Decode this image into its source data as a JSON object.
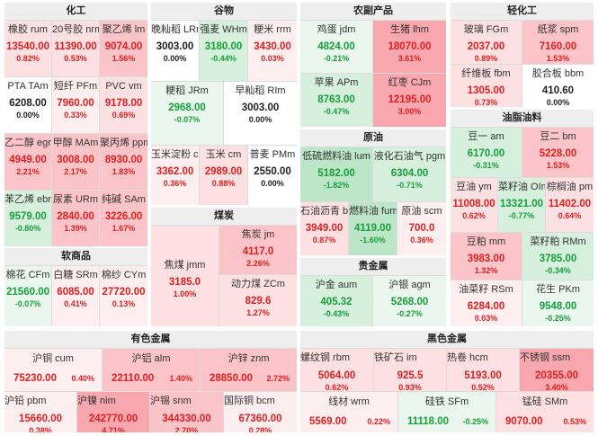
{
  "colors": {
    "up": "#e02020",
    "down": "#15a03a",
    "flat": "#222222",
    "panel_bg": "#dcdcdc",
    "title_bg": "#eeeeee"
  },
  "sections": {
    "chemicals": {
      "title": "化工",
      "items": [
        {
          "name": "橡胶 rum",
          "price": "13540.00",
          "change": "0.82%"
        },
        {
          "name": "20号胶 nrm",
          "price": "11390.00",
          "change": "0.53%"
        },
        {
          "name": "聚乙烯 lm",
          "price": "9074.00",
          "change": "1.56%"
        },
        {
          "name": "PTA TAm",
          "price": "6208.00",
          "change": "0.00%"
        },
        {
          "name": "短纤 PFm",
          "price": "7960.00",
          "change": "0.33%"
        },
        {
          "name": "PVC vm",
          "price": "9178.00",
          "change": "0.69%"
        },
        {
          "name": "乙二醇 egm",
          "price": "4949.00",
          "change": "2.21%"
        },
        {
          "name": "甲醇 MAm",
          "price": "3008.00",
          "change": "2.17%"
        },
        {
          "name": "聚丙烯 ppm",
          "price": "8930.00",
          "change": "1.83%"
        },
        {
          "name": "苯乙烯 ebm",
          "price": "9579.00",
          "change": "-0.80%"
        },
        {
          "name": "尿素 URm",
          "price": "2840.00",
          "change": "1.39%"
        },
        {
          "name": "纯碱 SAm",
          "price": "3226.00",
          "change": "1.67%"
        }
      ]
    },
    "grains": {
      "title": "谷物",
      "items": [
        {
          "name": "晚籼稻 LRm",
          "price": "3003.00",
          "change": "0.00%"
        },
        {
          "name": "强麦 WHm",
          "price": "3180.00",
          "change": "-0.44%"
        },
        {
          "name": "粳米 rrm",
          "price": "3430.00",
          "change": "0.03%"
        },
        {
          "name": "粳稻 JRm",
          "price": "2968.00",
          "change": "-0.07%"
        },
        {
          "name": "早籼稻 RIm",
          "price": "3003.00",
          "change": "0.00%"
        },
        {
          "name": "玉米淀粉 csm",
          "price": "3362.00",
          "change": "0.36%"
        },
        {
          "name": "玉米 cm",
          "price": "2989.00",
          "change": "0.88%"
        },
        {
          "name": "普麦 PMm",
          "price": "2550.00",
          "change": "0.00%"
        }
      ]
    },
    "agri": {
      "title": "农副产品",
      "items": [
        {
          "name": "鸡蛋 jdm",
          "price": "4824.00",
          "change": "-0.21%"
        },
        {
          "name": "生猪 lhm",
          "price": "18070.00",
          "change": "3.61%"
        },
        {
          "name": "苹果 APm",
          "price": "8763.00",
          "change": "-0.47%"
        },
        {
          "name": "红枣 CJm",
          "price": "12195.00",
          "change": "3.00%"
        }
      ]
    },
    "light": {
      "title": "轻化工",
      "items": [
        {
          "name": "玻璃 FGm",
          "price": "2037.00",
          "change": "0.89%"
        },
        {
          "name": "纸浆 spm",
          "price": "7160.00",
          "change": "1.53%"
        },
        {
          "name": "纤维板 fbm",
          "price": "1305.00",
          "change": "0.73%"
        },
        {
          "name": "胶合板 bbm",
          "price": "410.60",
          "change": "0.00%"
        }
      ]
    },
    "oils": {
      "title": "油脂油料",
      "items": [
        {
          "name": "豆一 am",
          "price": "6170.00",
          "change": "-0.31%"
        },
        {
          "name": "豆二 bm",
          "price": "5228.00",
          "change": "1.53%"
        },
        {
          "name": "豆油 ym",
          "price": "11008.00",
          "change": "0.62%"
        },
        {
          "name": "菜籽油 OIm",
          "price": "13321.00",
          "change": "-0.77%"
        },
        {
          "name": "棕榈油 pm",
          "price": "11402.00",
          "change": "0.64%"
        },
        {
          "name": "豆粕 mm",
          "price": "3983.00",
          "change": "1.32%"
        },
        {
          "name": "菜籽粕 RMm",
          "price": "3785.00",
          "change": "-0.34%"
        },
        {
          "name": "油菜籽 RSm",
          "price": "6284.00",
          "change": "0.03%"
        },
        {
          "name": "花生 PKm",
          "price": "9548.00",
          "change": "-0.25%"
        }
      ]
    },
    "crude": {
      "title": "原油",
      "items": [
        {
          "name": "低硫燃料油 lum",
          "price": "5182.00",
          "change": "-1.82%"
        },
        {
          "name": "液化石油气 pgm",
          "price": "6304.00",
          "change": "-0.71%"
        },
        {
          "name": "石油沥青 bum",
          "price": "3949.00",
          "change": "0.87%"
        },
        {
          "name": "燃料油 fum",
          "price": "4119.00",
          "change": "-1.60%"
        },
        {
          "name": "原油 scm",
          "price": "700.0",
          "change": "0.36%"
        }
      ]
    },
    "coal": {
      "title": "煤炭",
      "items": [
        {
          "name": "焦煤 jmm",
          "price": "3185.0",
          "change": "1.00%"
        },
        {
          "name": "焦炭 jm",
          "price": "4117.0",
          "change": "2.26%"
        },
        {
          "name": "动力煤 ZCm",
          "price": "829.6",
          "change": "1.27%"
        }
      ]
    },
    "precious": {
      "title": "贵金属",
      "items": [
        {
          "name": "沪金 aum",
          "price": "405.32",
          "change": "-0.43%"
        },
        {
          "name": "沪银 agm",
          "price": "5268.00",
          "change": "-0.27%"
        }
      ]
    },
    "soft": {
      "title": "软商品",
      "items": [
        {
          "name": "棉花 CFm",
          "price": "21560.00",
          "change": "-0.07%"
        },
        {
          "name": "白糖 SRm",
          "price": "6085.00",
          "change": "0.41%"
        },
        {
          "name": "棉纱 CYm",
          "price": "27720.00",
          "change": "0.13%"
        }
      ]
    },
    "nonferrous": {
      "title": "有色金属",
      "items": [
        {
          "name": "沪铜 cum",
          "price": "75230.00",
          "change": "0.40%"
        },
        {
          "name": "沪铝 alm",
          "price": "22110.00",
          "change": "1.40%"
        },
        {
          "name": "沪锌 znm",
          "price": "28850.00",
          "change": "2.72%"
        },
        {
          "name": "沪铅 pbm",
          "price": "15660.00",
          "change": "0.38%"
        },
        {
          "name": "沪镍 nim",
          "price": "242770.00",
          "change": "4.71%"
        },
        {
          "name": "沪锡 snm",
          "price": "344330.00",
          "change": "2.70%"
        },
        {
          "name": "国际铜 bcm",
          "price": "67360.00",
          "change": "0.28%"
        }
      ]
    },
    "ferrous": {
      "title": "黑色金属",
      "items": [
        {
          "name": "螺纹钢 rbm",
          "price": "5064.00",
          "change": "0.62%"
        },
        {
          "name": "铁矿石 im",
          "price": "925.5",
          "change": "0.93%"
        },
        {
          "name": "热卷 hcm",
          "price": "5193.00",
          "change": "0.52%"
        },
        {
          "name": "不锈钢 ssm",
          "price": "20355.00",
          "change": "3.40%"
        },
        {
          "name": "线材 wrm",
          "price": "5569.00",
          "change": "0.22%"
        },
        {
          "name": "硅铁 SFm",
          "price": "11118.00",
          "change": "-0.25%"
        },
        {
          "name": "锰硅 SMm",
          "price": "9070.00",
          "change": "0.53%"
        }
      ]
    }
  }
}
